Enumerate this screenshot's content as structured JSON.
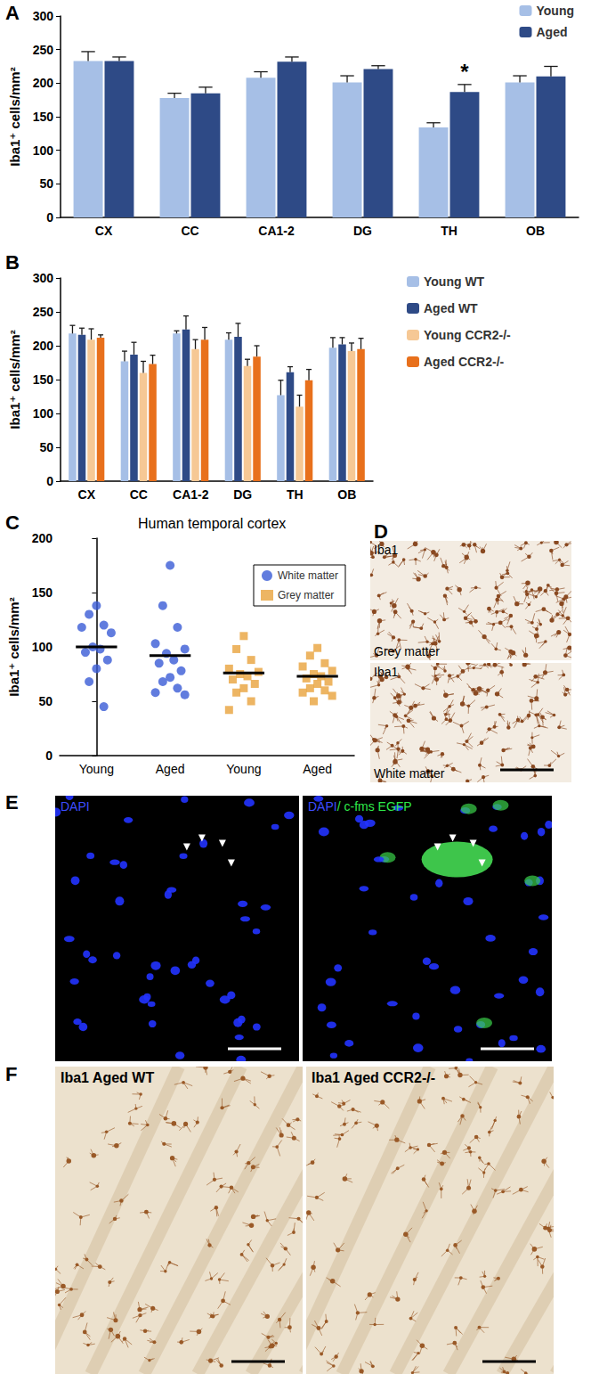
{
  "chart_data": [
    {
      "panel": "A",
      "type": "bar",
      "ylabel": "Iba1⁺ cells/mm²",
      "categories": [
        "CX",
        "CC",
        "CA1-2",
        "DG",
        "TH",
        "OB"
      ],
      "series": [
        {
          "name": "Young",
          "color": "#a6bfe6",
          "values": [
            233,
            178,
            208,
            201,
            134,
            201
          ],
          "errors": [
            14,
            7,
            9,
            10,
            7,
            10
          ]
        },
        {
          "name": "Aged",
          "color": "#2e4a86",
          "values": [
            233,
            185,
            232,
            221,
            187,
            210
          ],
          "errors": [
            6,
            9,
            7,
            5,
            11,
            15
          ]
        }
      ],
      "ylim": [
        0,
        300
      ],
      "yticks": [
        0,
        50,
        100,
        150,
        200,
        250,
        300
      ],
      "grid": false,
      "legend": "top right",
      "annotations": [
        {
          "text": "*",
          "category": "TH",
          "series": "Aged"
        }
      ]
    },
    {
      "panel": "B",
      "type": "bar",
      "ylabel": "Iba1⁺ cells/mm²",
      "categories": [
        "CX",
        "CC",
        "CA1-2",
        "DG",
        "TH",
        "OB"
      ],
      "series": [
        {
          "name": "Young WT",
          "color": "#a6bfe6",
          "values": [
            218,
            177,
            218,
            209,
            127,
            197
          ],
          "errors": [
            12,
            15,
            4,
            10,
            22,
            15
          ]
        },
        {
          "name": "Aged WT",
          "color": "#2e4a86",
          "values": [
            216,
            187,
            224,
            213,
            161,
            202
          ],
          "errors": [
            10,
            18,
            20,
            20,
            8,
            10
          ]
        },
        {
          "name": "Young CCR2-/-",
          "color": "#f6c895",
          "values": [
            209,
            160,
            195,
            170,
            110,
            192
          ],
          "errors": [
            16,
            17,
            14,
            10,
            17,
            12
          ]
        },
        {
          "name": "Aged CCR2-/-",
          "color": "#e8701c",
          "values": [
            212,
            173,
            209,
            184,
            149,
            195
          ],
          "errors": [
            4,
            13,
            18,
            16,
            16,
            16
          ]
        }
      ],
      "ylim": [
        0,
        300
      ],
      "yticks": [
        0,
        50,
        100,
        150,
        200,
        250,
        300
      ],
      "grid": false,
      "legend": "right"
    },
    {
      "panel": "C",
      "type": "scatter",
      "title": "Human temporal cortex",
      "ylabel": "Iba1⁺ cells/mm²",
      "categories": [
        "Young",
        "Aged",
        "Young",
        "Aged"
      ],
      "series": [
        {
          "name": "White matter",
          "color": "#3a5bd6",
          "marker": "circle",
          "values": [
            [
              138,
              130,
              120,
              118,
              113,
              100,
              98,
              95,
              88,
              80,
              68,
              45
            ],
            [
              175,
              138,
              118,
              103,
              98,
              94,
              88,
              85,
              78,
              72,
              68,
              62,
              58,
              56
            ],
            null,
            null
          ],
          "means": [
            100,
            92,
            null,
            null
          ]
        },
        {
          "name": "Grey matter",
          "color": "#e8a33c",
          "marker": "square",
          "values": [
            null,
            null,
            [
              110,
              98,
              88,
              80,
              77,
              75,
              73,
              70,
              66,
              62,
              58,
              50,
              42
            ],
            [
              99,
              92,
              85,
              82,
              78,
              75,
              73,
              71,
              68,
              66,
              62,
              60,
              58,
              55,
              50
            ]
          ],
          "means": [
            null,
            null,
            76,
            73
          ]
        }
      ],
      "ylim": [
        0,
        200
      ],
      "yticks": [
        0,
        50,
        100,
        150,
        200
      ],
      "grid": false,
      "legend": "top right"
    }
  ],
  "images": [
    {
      "panel": "D",
      "frames": [
        {
          "labels": [
            "Iba1",
            "Grey matter"
          ]
        },
        {
          "labels": [
            "Iba1",
            "White matter"
          ]
        }
      ]
    },
    {
      "panel": "E",
      "frames": [
        {
          "labels": [
            "DAPI"
          ]
        },
        {
          "labels": [
            "DAPI",
            "/ c-fms EGFP"
          ]
        }
      ]
    },
    {
      "panel": "F",
      "frames": [
        {
          "labels": [
            "Iba1 Aged WT"
          ]
        },
        {
          "labels": [
            "Iba1 Aged CCR2-/-"
          ]
        }
      ]
    }
  ]
}
